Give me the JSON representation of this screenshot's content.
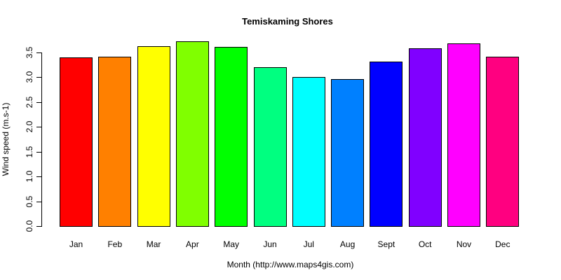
{
  "chart_data": {
    "type": "bar",
    "title": "Temiskaming Shores",
    "xlabel": "Month (http://www.maps4gis.com)",
    "ylabel": "Wind speed (m.s-1)",
    "categories": [
      "Jan",
      "Feb",
      "Mar",
      "Apr",
      "May",
      "Jun",
      "Jul",
      "Aug",
      "Sept",
      "Oct",
      "Nov",
      "Dec"
    ],
    "values": [
      3.4,
      3.42,
      3.63,
      3.72,
      3.61,
      3.21,
      3.0,
      2.96,
      3.31,
      3.58,
      3.68,
      3.42
    ],
    "colors": [
      "#ff0000",
      "#ff8000",
      "#ffff00",
      "#80ff00",
      "#00ff00",
      "#00ff80",
      "#00ffff",
      "#0080ff",
      "#0000ff",
      "#8000ff",
      "#ff00ff",
      "#ff0080"
    ],
    "ylim": [
      0,
      3.5
    ],
    "yticks": [
      "0.0",
      "0.5",
      "1.0",
      "1.5",
      "2.0",
      "2.5",
      "3.0",
      "3.5"
    ],
    "grid": false,
    "legend": null
  }
}
